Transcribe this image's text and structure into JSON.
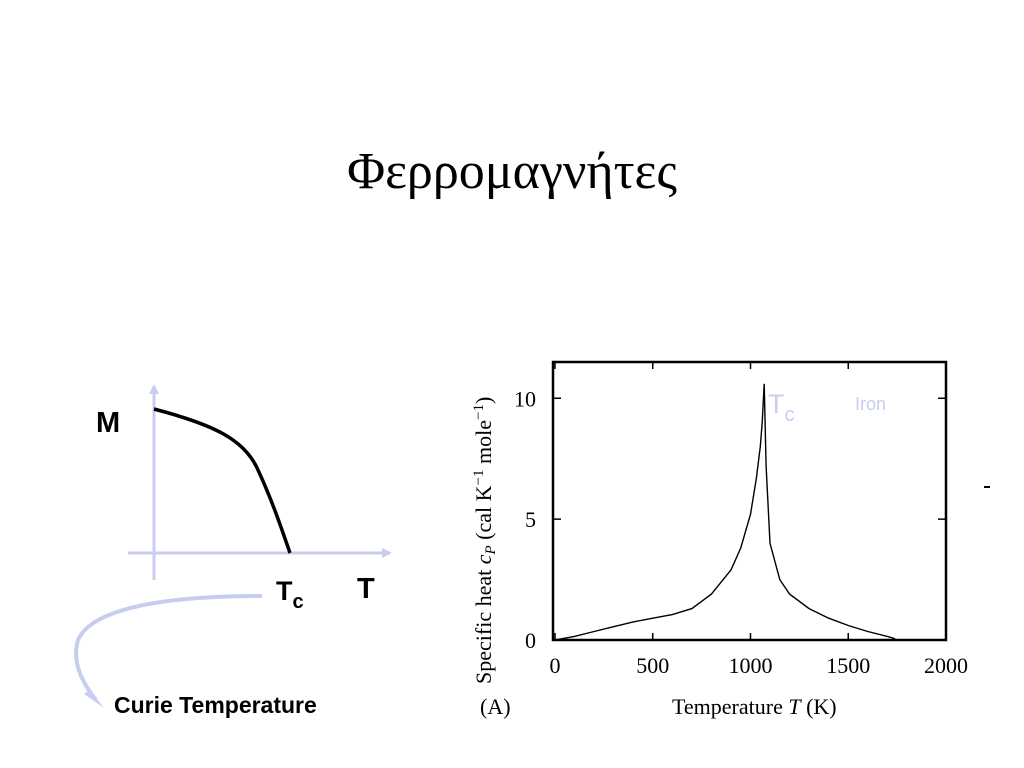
{
  "slide": {
    "title": "Φερρομαγνήτες"
  },
  "left_diagram": {
    "y_label": "M",
    "tc_label_main": "T",
    "tc_label_sub": "c",
    "x_label": "T",
    "note": "Curie Temperature",
    "axis_color": "#c8cdf0",
    "arrow_color": "#c8cdf0"
  },
  "chart_data": {
    "type": "line",
    "ylabel": "Specific heat c_P (cal K^-1 mole^-1)",
    "ylabel_parts": {
      "a": "Specific heat ",
      "b": "c",
      "c": "P",
      "d": " (cal K",
      "e": "−1",
      "f": " mole",
      "g": "−1",
      "h": ")"
    },
    "xlabel_parts": {
      "a": "Temperature ",
      "b": "T",
      "c": " (K)"
    },
    "panel_label": "(A)",
    "series_label": "Iron",
    "tc_label_main": "T",
    "tc_label_sub": "c",
    "accent_color": "#c8cdf0",
    "xlim": [
      0,
      2000
    ],
    "ylim": [
      0,
      11.5
    ],
    "xticks": [
      0,
      500,
      1000,
      1500,
      2000
    ],
    "yticks": [
      0,
      5,
      10
    ],
    "xtick_labels": [
      "0",
      "500",
      "1000",
      "1500",
      "2000"
    ],
    "ytick_labels": [
      "0",
      "5",
      "10"
    ],
    "series": [
      {
        "x": [
          0,
          100,
          200,
          300,
          400,
          500,
          600,
          700,
          800,
          900,
          950,
          1000,
          1030,
          1050,
          1060,
          1070,
          1080,
          1100,
          1150,
          1200,
          1300,
          1400,
          1500,
          1600,
          1700,
          1740
        ],
        "y": [
          0.0,
          0.15,
          0.35,
          0.55,
          0.75,
          0.9,
          1.05,
          1.3,
          1.9,
          2.9,
          3.8,
          5.2,
          6.7,
          8.0,
          9.0,
          10.6,
          7.2,
          4.0,
          2.5,
          1.9,
          1.3,
          0.9,
          0.6,
          0.35,
          0.15,
          0.05
        ]
      }
    ]
  }
}
